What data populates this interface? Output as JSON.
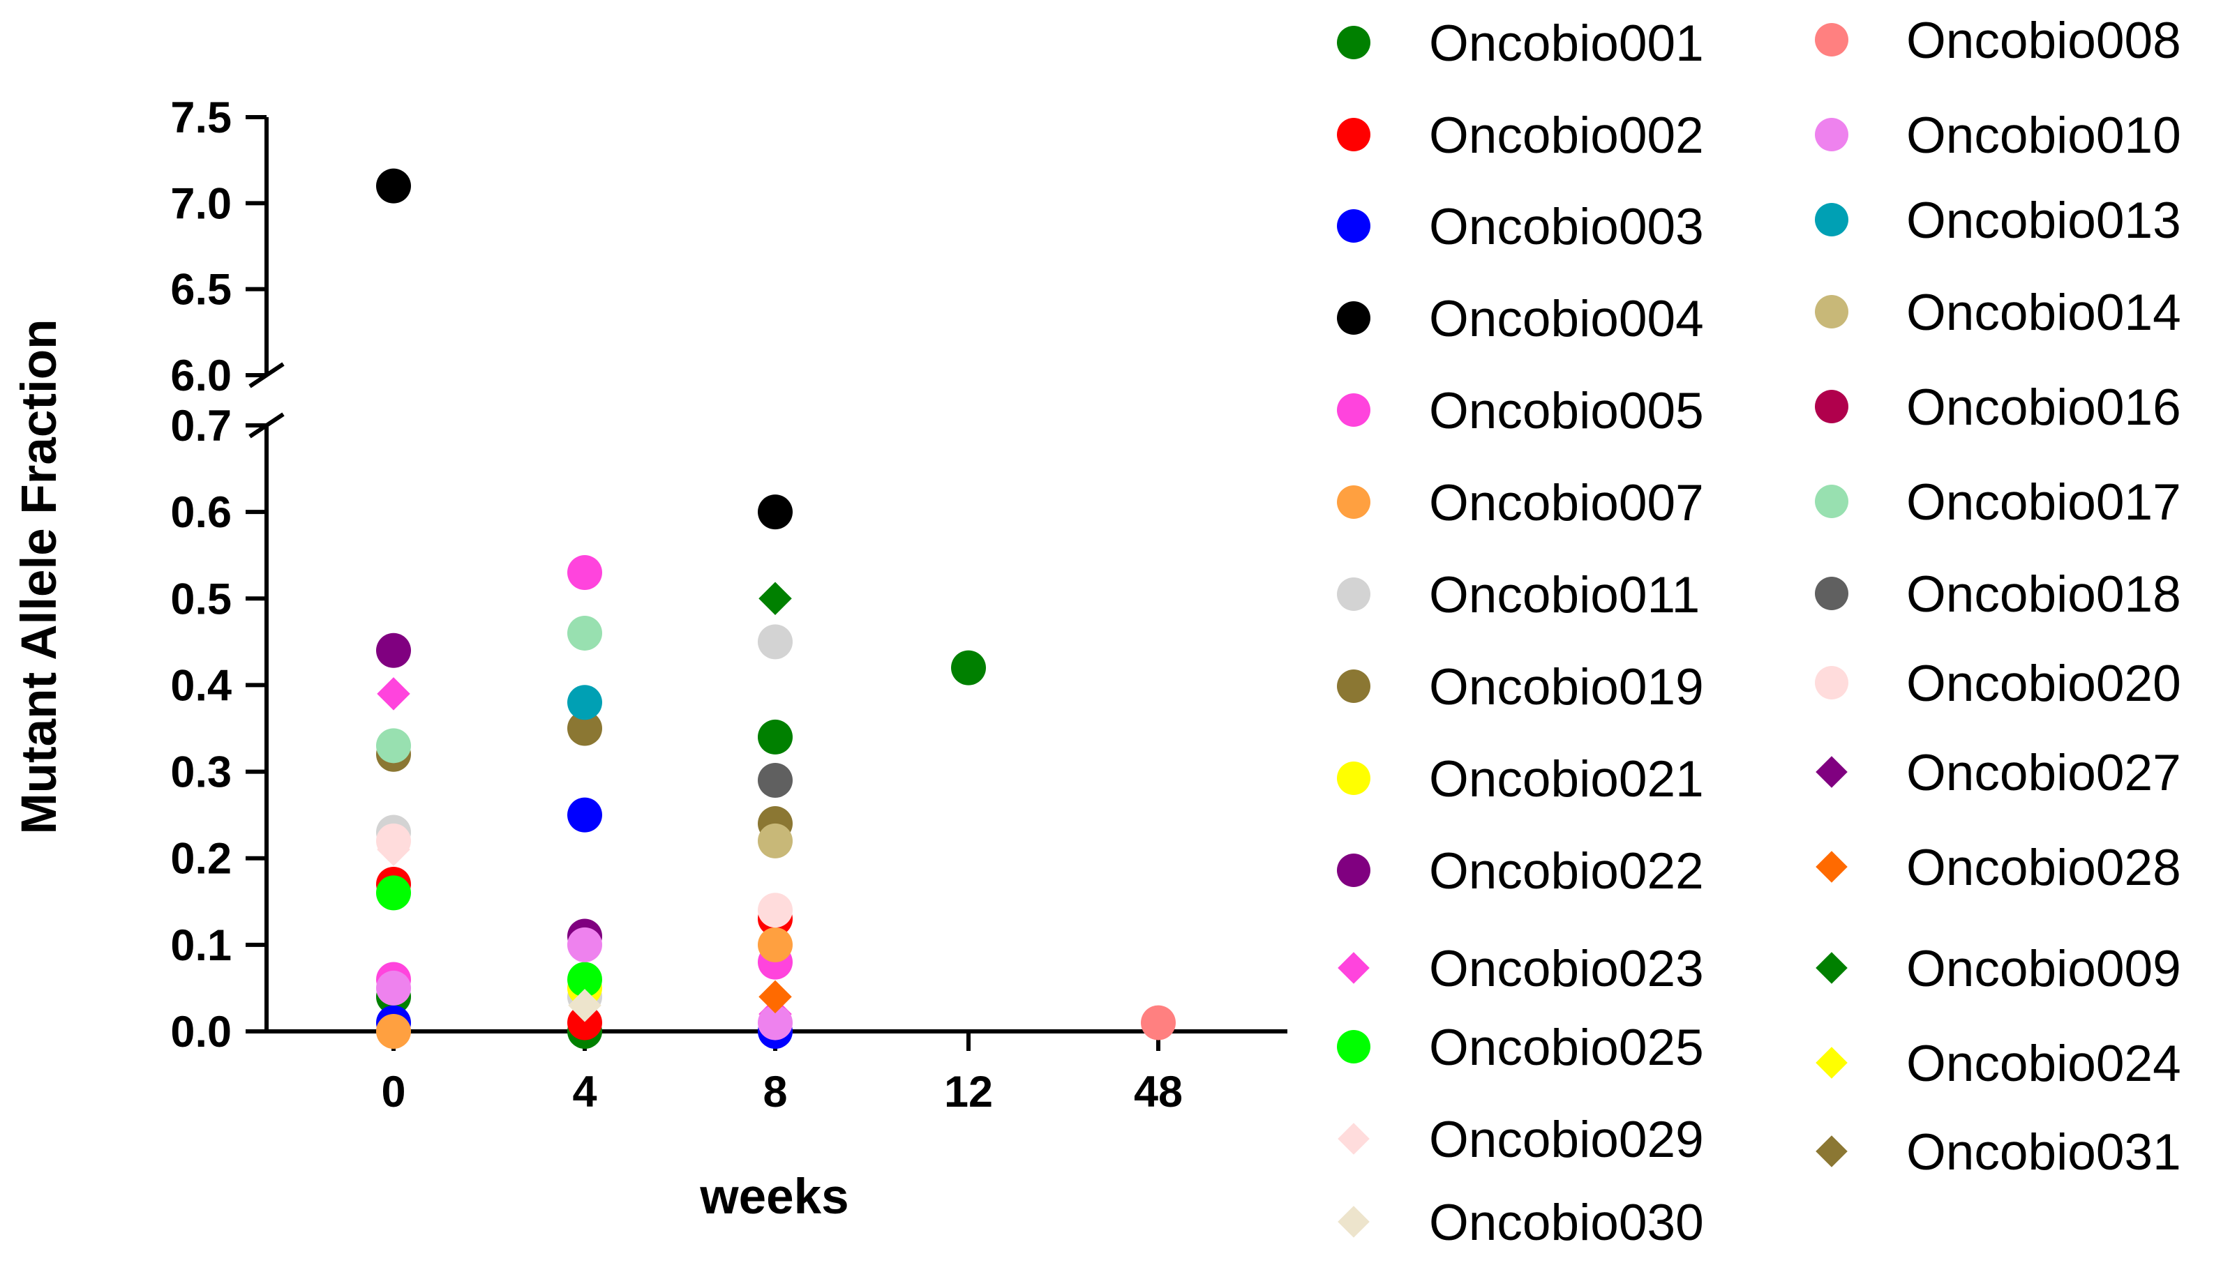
{
  "chart_data": {
    "type": "scatter",
    "title": "",
    "xlabel": "weeks",
    "ylabel": "Mutant Allele Fraction",
    "x_categories": [
      "0",
      "4",
      "8",
      "12",
      "48"
    ],
    "y_axis": {
      "broken": true,
      "lower_range": [
        0.0,
        0.7
      ],
      "upper_range": [
        6.0,
        7.5
      ],
      "lower_ticks": [
        0.0,
        0.1,
        0.2,
        0.3,
        0.4,
        0.5,
        0.6,
        0.7
      ],
      "upper_ticks": [
        6.0,
        6.5,
        7.0,
        7.5
      ],
      "tick_labels_lower": [
        "0.0",
        "0.1",
        "0.2",
        "0.3",
        "0.4",
        "0.5",
        "0.6",
        "0.7"
      ],
      "tick_labels_upper": [
        "6.0",
        "6.5",
        "7.0",
        "7.5"
      ]
    },
    "legend_position": "right",
    "series": [
      {
        "name": "Oncobio001",
        "marker": "circle",
        "color": "#008000",
        "points": [
          {
            "x": "0",
            "y": 0.04
          },
          {
            "x": "4",
            "y": 0.0
          },
          {
            "x": "8",
            "y": 0.34
          },
          {
            "x": "12",
            "y": 0.42
          }
        ]
      },
      {
        "name": "Oncobio002",
        "marker": "circle",
        "color": "#ff0000",
        "points": [
          {
            "x": "0",
            "y": 0.17
          },
          {
            "x": "4",
            "y": 0.01
          },
          {
            "x": "8",
            "y": 0.13
          }
        ]
      },
      {
        "name": "Oncobio003",
        "marker": "circle",
        "color": "#0000ff",
        "points": [
          {
            "x": "0",
            "y": 0.01
          },
          {
            "x": "4",
            "y": 0.25
          },
          {
            "x": "8",
            "y": 0.0
          }
        ]
      },
      {
        "name": "Oncobio004",
        "marker": "circle",
        "color": "#000000",
        "points": [
          {
            "x": "0",
            "y": 7.1
          },
          {
            "x": "8",
            "y": 0.6
          }
        ]
      },
      {
        "name": "Oncobio005",
        "marker": "circle",
        "color": "#ff44dd",
        "points": [
          {
            "x": "0",
            "y": 0.06
          },
          {
            "x": "4",
            "y": 0.53
          },
          {
            "x": "8",
            "y": 0.08
          }
        ]
      },
      {
        "name": "Oncobio007",
        "marker": "circle",
        "color": "#ffa040",
        "points": [
          {
            "x": "0",
            "y": 0.0
          },
          {
            "x": "8",
            "y": 0.1
          }
        ]
      },
      {
        "name": "Oncobio011",
        "marker": "circle",
        "color": "#d3d3d3",
        "points": [
          {
            "x": "0",
            "y": 0.23
          },
          {
            "x": "4",
            "y": 0.04
          },
          {
            "x": "8",
            "y": 0.45
          }
        ]
      },
      {
        "name": "Oncobio019",
        "marker": "circle",
        "color": "#8b7733",
        "points": [
          {
            "x": "0",
            "y": 0.32
          },
          {
            "x": "4",
            "y": 0.35
          },
          {
            "x": "8",
            "y": 0.24
          }
        ]
      },
      {
        "name": "Oncobio021",
        "marker": "circle",
        "color": "#ffff00",
        "points": [
          {
            "x": "4",
            "y": 0.05
          }
        ]
      },
      {
        "name": "Oncobio022",
        "marker": "circle",
        "color": "#800080",
        "points": [
          {
            "x": "0",
            "y": 0.44
          },
          {
            "x": "4",
            "y": 0.11
          }
        ]
      },
      {
        "name": "Oncobio023",
        "marker": "diamond",
        "color": "#ff44dd",
        "points": [
          {
            "x": "0",
            "y": 0.39
          },
          {
            "x": "8",
            "y": 0.02
          }
        ]
      },
      {
        "name": "Oncobio025",
        "marker": "circle",
        "color": "#00ff00",
        "points": [
          {
            "x": "0",
            "y": 0.16
          },
          {
            "x": "4",
            "y": 0.06
          }
        ]
      },
      {
        "name": "Oncobio029",
        "marker": "diamond",
        "color": "#ffdcdc",
        "points": [
          {
            "x": "0",
            "y": 0.21
          }
        ]
      },
      {
        "name": "Oncobio030",
        "marker": "diamond",
        "color": "#ede4cc",
        "points": [
          {
            "x": "4",
            "y": 0.03
          }
        ]
      },
      {
        "name": "Oncobio008",
        "marker": "circle",
        "color": "#ff8080",
        "points": [
          {
            "x": "48",
            "y": 0.01
          }
        ]
      },
      {
        "name": "Oncobio010",
        "marker": "circle",
        "color": "#ee82ee",
        "points": [
          {
            "x": "0",
            "y": 0.05
          },
          {
            "x": "4",
            "y": 0.1
          },
          {
            "x": "8",
            "y": 0.01
          }
        ]
      },
      {
        "name": "Oncobio013",
        "marker": "circle",
        "color": "#00a0b4",
        "points": [
          {
            "x": "4",
            "y": 0.38
          }
        ]
      },
      {
        "name": "Oncobio014",
        "marker": "circle",
        "color": "#c8b878",
        "points": [
          {
            "x": "8",
            "y": 0.22
          }
        ]
      },
      {
        "name": "Oncobio016",
        "marker": "circle",
        "color": "#b0004c",
        "points": []
      },
      {
        "name": "Oncobio017",
        "marker": "circle",
        "color": "#98e0b0",
        "points": [
          {
            "x": "0",
            "y": 0.33
          },
          {
            "x": "4",
            "y": 0.46
          }
        ]
      },
      {
        "name": "Oncobio018",
        "marker": "circle",
        "color": "#606060",
        "points": [
          {
            "x": "8",
            "y": 0.29
          }
        ]
      },
      {
        "name": "Oncobio020",
        "marker": "circle",
        "color": "#ffdcdc",
        "points": [
          {
            "x": "0",
            "y": 0.22
          },
          {
            "x": "8",
            "y": 0.14
          }
        ]
      },
      {
        "name": "Oncobio027",
        "marker": "diamond",
        "color": "#800080",
        "points": []
      },
      {
        "name": "Oncobio028",
        "marker": "diamond",
        "color": "#ff6a00",
        "points": [
          {
            "x": "8",
            "y": 0.04
          }
        ]
      },
      {
        "name": "Oncobio009",
        "marker": "diamond",
        "color": "#008000",
        "points": [
          {
            "x": "8",
            "y": 0.5
          }
        ]
      },
      {
        "name": "Oncobio024",
        "marker": "diamond",
        "color": "#ffff00",
        "points": []
      },
      {
        "name": "Oncobio031",
        "marker": "diamond",
        "color": "#8b7733",
        "points": []
      }
    ]
  }
}
